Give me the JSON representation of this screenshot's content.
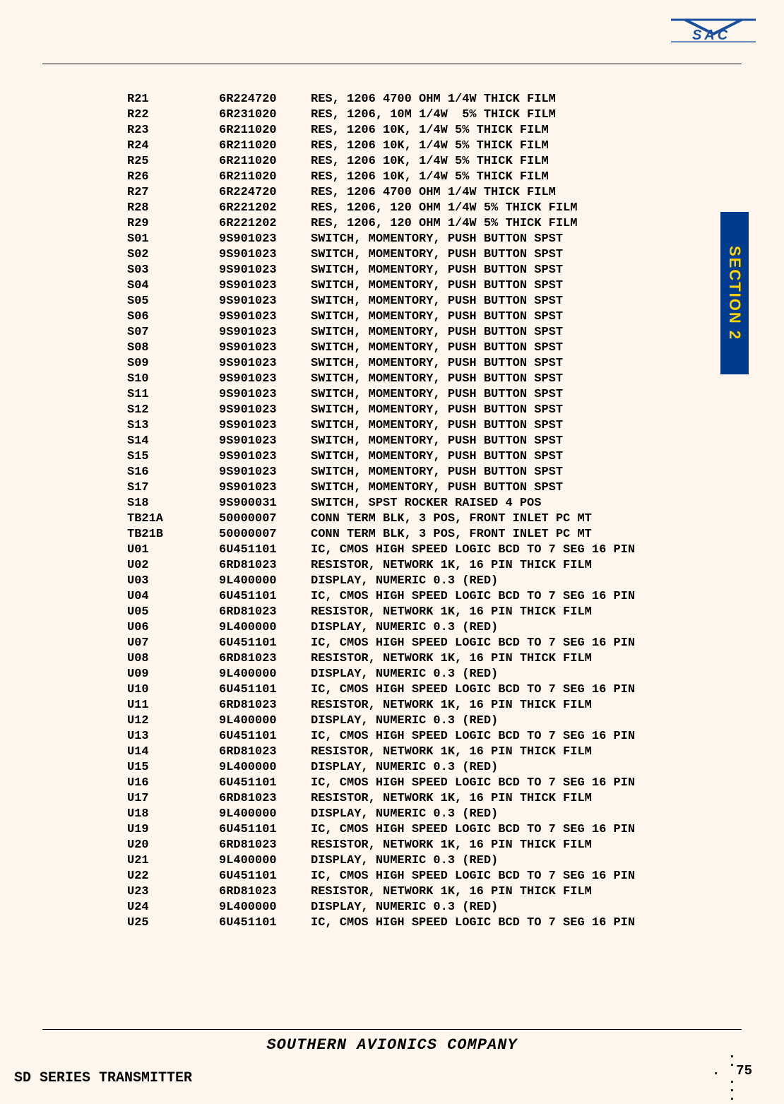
{
  "footer_center": "SOUTHERN AVIONICS COMPANY",
  "footer_left": "SD SERIES TRANSMITTER",
  "page_number": "75",
  "section_tab": "SECTION 2",
  "rows": [
    {
      "ref": "R21",
      "pn": "6R224720",
      "desc": "RES, 1206 4700 OHM 1/4W THICK FILM"
    },
    {
      "ref": "R22",
      "pn": "6R231020",
      "desc": "RES, 1206, 10M 1/4W  5% THICK FILM"
    },
    {
      "ref": "R23",
      "pn": "6R211020",
      "desc": "RES, 1206 10K, 1/4W 5% THICK FILM"
    },
    {
      "ref": "R24",
      "pn": "6R211020",
      "desc": "RES, 1206 10K, 1/4W 5% THICK FILM"
    },
    {
      "ref": "R25",
      "pn": "6R211020",
      "desc": "RES, 1206 10K, 1/4W 5% THICK FILM"
    },
    {
      "ref": "R26",
      "pn": "6R211020",
      "desc": "RES, 1206 10K, 1/4W 5% THICK FILM"
    },
    {
      "ref": "R27",
      "pn": "6R224720",
      "desc": "RES, 1206 4700 OHM 1/4W THICK FILM"
    },
    {
      "ref": "R28",
      "pn": "6R221202",
      "desc": "RES, 1206, 120 OHM 1/4W 5% THICK FILM"
    },
    {
      "ref": "R29",
      "pn": "6R221202",
      "desc": "RES, 1206, 120 OHM 1/4W 5% THICK FILM"
    },
    {
      "ref": "S01",
      "pn": "9S901023",
      "desc": "SWITCH, MOMENTORY, PUSH BUTTON SPST"
    },
    {
      "ref": "S02",
      "pn": "9S901023",
      "desc": "SWITCH, MOMENTORY, PUSH BUTTON SPST"
    },
    {
      "ref": "S03",
      "pn": "9S901023",
      "desc": "SWITCH, MOMENTORY, PUSH BUTTON SPST"
    },
    {
      "ref": "S04",
      "pn": "9S901023",
      "desc": "SWITCH, MOMENTORY, PUSH BUTTON SPST"
    },
    {
      "ref": "S05",
      "pn": "9S901023",
      "desc": "SWITCH, MOMENTORY, PUSH BUTTON SPST"
    },
    {
      "ref": "S06",
      "pn": "9S901023",
      "desc": "SWITCH, MOMENTORY, PUSH BUTTON SPST"
    },
    {
      "ref": "S07",
      "pn": "9S901023",
      "desc": "SWITCH, MOMENTORY, PUSH BUTTON SPST"
    },
    {
      "ref": "S08",
      "pn": "9S901023",
      "desc": "SWITCH, MOMENTORY, PUSH BUTTON SPST"
    },
    {
      "ref": "S09",
      "pn": "9S901023",
      "desc": "SWITCH, MOMENTORY, PUSH BUTTON SPST"
    },
    {
      "ref": "S10",
      "pn": "9S901023",
      "desc": "SWITCH, MOMENTORY, PUSH BUTTON SPST"
    },
    {
      "ref": "S11",
      "pn": "9S901023",
      "desc": "SWITCH, MOMENTORY, PUSH BUTTON SPST"
    },
    {
      "ref": "S12",
      "pn": "9S901023",
      "desc": "SWITCH, MOMENTORY, PUSH BUTTON SPST"
    },
    {
      "ref": "S13",
      "pn": "9S901023",
      "desc": "SWITCH, MOMENTORY, PUSH BUTTON SPST"
    },
    {
      "ref": "S14",
      "pn": "9S901023",
      "desc": "SWITCH, MOMENTORY, PUSH BUTTON SPST"
    },
    {
      "ref": "S15",
      "pn": "9S901023",
      "desc": "SWITCH, MOMENTORY, PUSH BUTTON SPST"
    },
    {
      "ref": "S16",
      "pn": "9S901023",
      "desc": "SWITCH, MOMENTORY, PUSH BUTTON SPST"
    },
    {
      "ref": "S17",
      "pn": "9S901023",
      "desc": "SWITCH, MOMENTORY, PUSH BUTTON SPST"
    },
    {
      "ref": "S18",
      "pn": "9S900031",
      "desc": "SWITCH, SPST ROCKER RAISED 4 POS"
    },
    {
      "ref": "TB21A",
      "pn": "50000007",
      "desc": "CONN TERM BLK, 3 POS, FRONT INLET PC MT"
    },
    {
      "ref": "TB21B",
      "pn": "50000007",
      "desc": "CONN TERM BLK, 3 POS, FRONT INLET PC MT"
    },
    {
      "ref": "U01",
      "pn": "6U451101",
      "desc": "IC, CMOS HIGH SPEED LOGIC BCD TO 7 SEG 16 PIN"
    },
    {
      "ref": "U02",
      "pn": "6RD81023",
      "desc": "RESISTOR, NETWORK 1K, 16 PIN THICK FILM"
    },
    {
      "ref": "U03",
      "pn": "9L400000",
      "desc": "DISPLAY, NUMERIC 0.3 (RED)"
    },
    {
      "ref": "U04",
      "pn": "6U451101",
      "desc": "IC, CMOS HIGH SPEED LOGIC BCD TO 7 SEG 16 PIN"
    },
    {
      "ref": "U05",
      "pn": "6RD81023",
      "desc": "RESISTOR, NETWORK 1K, 16 PIN THICK FILM"
    },
    {
      "ref": "U06",
      "pn": "9L400000",
      "desc": "DISPLAY, NUMERIC 0.3 (RED)"
    },
    {
      "ref": "U07",
      "pn": "6U451101",
      "desc": "IC, CMOS HIGH SPEED LOGIC BCD TO 7 SEG 16 PIN"
    },
    {
      "ref": "U08",
      "pn": "6RD81023",
      "desc": "RESISTOR, NETWORK 1K, 16 PIN THICK FILM"
    },
    {
      "ref": "U09",
      "pn": "9L400000",
      "desc": "DISPLAY, NUMERIC 0.3 (RED)"
    },
    {
      "ref": "U10",
      "pn": "6U451101",
      "desc": "IC, CMOS HIGH SPEED LOGIC BCD TO 7 SEG 16 PIN"
    },
    {
      "ref": "U11",
      "pn": "6RD81023",
      "desc": "RESISTOR, NETWORK 1K, 16 PIN THICK FILM"
    },
    {
      "ref": "U12",
      "pn": "9L400000",
      "desc": "DISPLAY, NUMERIC 0.3 (RED)"
    },
    {
      "ref": "U13",
      "pn": "6U451101",
      "desc": "IC, CMOS HIGH SPEED LOGIC BCD TO 7 SEG 16 PIN"
    },
    {
      "ref": "U14",
      "pn": "6RD81023",
      "desc": "RESISTOR, NETWORK 1K, 16 PIN THICK FILM"
    },
    {
      "ref": "U15",
      "pn": "9L400000",
      "desc": "DISPLAY, NUMERIC 0.3 (RED)"
    },
    {
      "ref": "U16",
      "pn": "6U451101",
      "desc": "IC, CMOS HIGH SPEED LOGIC BCD TO 7 SEG 16 PIN"
    },
    {
      "ref": "U17",
      "pn": "6RD81023",
      "desc": "RESISTOR, NETWORK 1K, 16 PIN THICK FILM"
    },
    {
      "ref": "U18",
      "pn": "9L400000",
      "desc": "DISPLAY, NUMERIC 0.3 (RED)"
    },
    {
      "ref": "U19",
      "pn": "6U451101",
      "desc": "IC, CMOS HIGH SPEED LOGIC BCD TO 7 SEG 16 PIN"
    },
    {
      "ref": "U20",
      "pn": "6RD81023",
      "desc": "RESISTOR, NETWORK 1K, 16 PIN THICK FILM"
    },
    {
      "ref": "U21",
      "pn": "9L400000",
      "desc": "DISPLAY, NUMERIC 0.3 (RED)"
    },
    {
      "ref": "U22",
      "pn": "6U451101",
      "desc": "IC, CMOS HIGH SPEED LOGIC BCD TO 7 SEG 16 PIN"
    },
    {
      "ref": "U23",
      "pn": "6RD81023",
      "desc": "RESISTOR, NETWORK 1K, 16 PIN THICK FILM"
    },
    {
      "ref": "U24",
      "pn": "9L400000",
      "desc": "DISPLAY, NUMERIC 0.3 (RED)"
    },
    {
      "ref": "U25",
      "pn": "6U451101",
      "desc": "IC, CMOS HIGH SPEED LOGIC BCD TO 7 SEG 16 PIN"
    }
  ]
}
